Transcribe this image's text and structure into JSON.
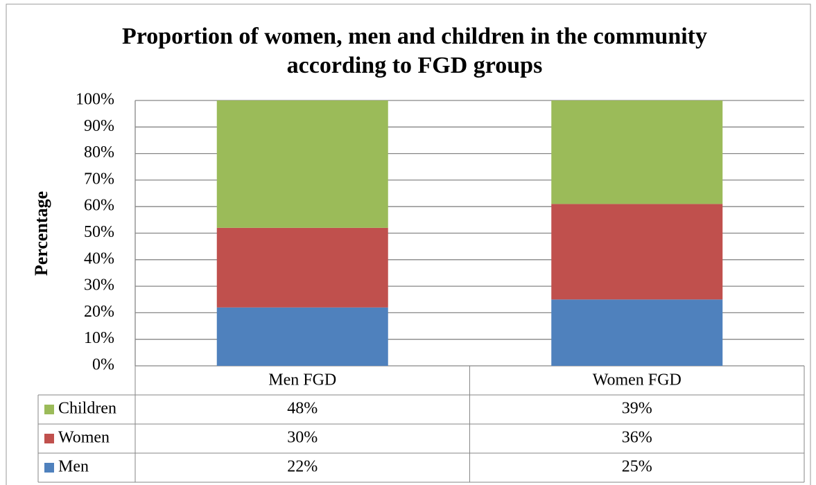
{
  "chart_data": {
    "type": "stacked_bar",
    "title": [
      "Proportion of women, men and children in the community",
      "according to FGD groups"
    ],
    "y_label": "Percentage",
    "categories": [
      "Men FGD",
      "Women FGD"
    ],
    "series": [
      {
        "name": "Men",
        "color": "#4f81bd",
        "values": [
          22,
          25
        ],
        "value_labels": [
          "22%",
          "25%"
        ]
      },
      {
        "name": "Women",
        "color": "#c0504d",
        "values": [
          30,
          36
        ],
        "value_labels": [
          "30%",
          "36%"
        ]
      },
      {
        "name": "Children",
        "color": "#9bbb59",
        "values": [
          48,
          39
        ],
        "value_labels": [
          "48%",
          "39%"
        ]
      }
    ],
    "ylim": [
      0,
      100
    ],
    "yticks": [
      {
        "value": 0,
        "label": "0%"
      },
      {
        "value": 10,
        "label": "10%"
      },
      {
        "value": 20,
        "label": "20%"
      },
      {
        "value": 30,
        "label": "30%"
      },
      {
        "value": 40,
        "label": "40%"
      },
      {
        "value": 50,
        "label": "50%"
      },
      {
        "value": 60,
        "label": "60%"
      },
      {
        "value": 70,
        "label": "70%"
      },
      {
        "value": 80,
        "label": "80%"
      },
      {
        "value": 90,
        "label": "90%"
      },
      {
        "value": 100,
        "label": "100%"
      }
    ],
    "grid": true,
    "data_table": true
  }
}
